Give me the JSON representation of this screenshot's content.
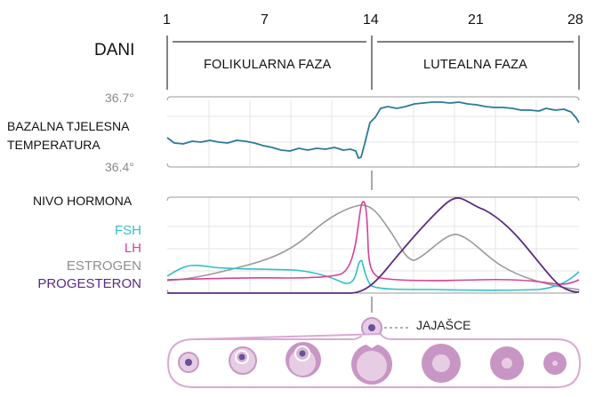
{
  "header": {
    "days_label": "DANI",
    "day_ticks": [
      "1",
      "7",
      "14",
      "21",
      "28"
    ],
    "phases": [
      "FOLIKULARNA FAZA",
      "LUTEALNA FAZA"
    ]
  },
  "temperature": {
    "title_line1": "BAZALNA TJELESNA",
    "title_line2": "TEMPERATURA",
    "axis_max": "36.7°",
    "axis_min": "36.4°",
    "line_color": "#2a7b98"
  },
  "hormones": {
    "title": "NIVO HORMONA",
    "legend": [
      {
        "name": "FSH",
        "color": "#2fbfc9"
      },
      {
        "name": "LH",
        "color": "#d6409a"
      },
      {
        "name": "ESTROGEN",
        "color": "#8f8f8f"
      },
      {
        "name": "PROGESTERON",
        "color": "#5b2b82"
      }
    ]
  },
  "ovulation": {
    "label": "JAJAŠCE"
  },
  "colors": {
    "grid": "#e6e6e6",
    "frame": "#888888",
    "follicle_outer": "#c896c5",
    "follicle_light": "#e6cde4",
    "follicle_core": "#6a4f9a"
  }
}
